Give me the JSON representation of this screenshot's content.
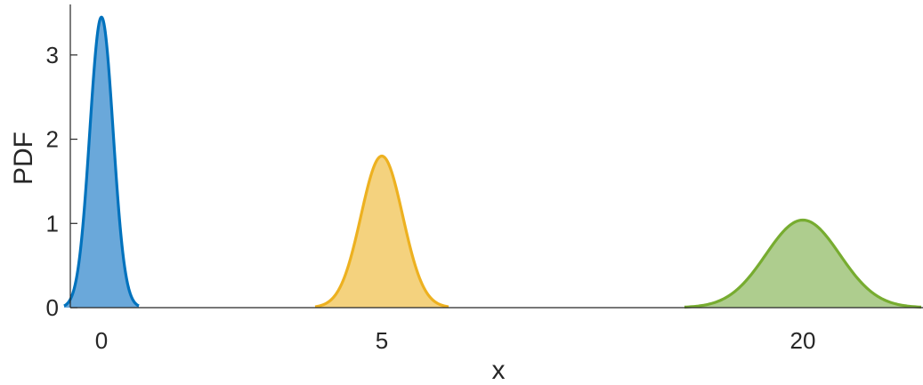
{
  "chart_data": {
    "type": "area",
    "xlabel": "x",
    "ylabel": "PDF",
    "ylim": [
      0,
      3.6
    ],
    "y_ticks": [
      0,
      1,
      2,
      3
    ],
    "grid": false,
    "legend": "none",
    "x_tick_labels": [
      "0",
      "5",
      "20"
    ],
    "series": [
      {
        "color": "#0072BD",
        "fill_color": "#6AA8DA",
        "category": "0",
        "peak": 3.45,
        "x": [
          -0.4,
          -0.3,
          -0.2,
          -0.15,
          -0.1,
          -0.05,
          0.0,
          0.05,
          0.1,
          0.15,
          0.2,
          0.3,
          0.4
        ],
        "y": [
          0.0,
          0.04,
          0.69,
          1.66,
          2.78,
          3.34,
          3.45,
          3.34,
          2.78,
          1.66,
          0.69,
          0.04,
          0.0
        ]
      },
      {
        "color": "#EDB120",
        "fill_color": "#F4D27E",
        "category": "5",
        "peak": 1.8,
        "x": [
          4.3,
          4.5,
          4.6,
          4.7,
          4.8,
          4.9,
          5.0,
          5.1,
          5.2,
          5.3,
          5.4,
          5.5,
          5.7
        ],
        "y": [
          0.0,
          0.06,
          0.24,
          0.6,
          1.14,
          1.62,
          1.8,
          1.62,
          1.14,
          0.6,
          0.24,
          0.06,
          0.0
        ]
      },
      {
        "color": "#77AC30",
        "fill_color": "#AECD8E",
        "category": "20",
        "peak": 1.04,
        "x": [
          18.7,
          19.0,
          19.2,
          19.4,
          19.6,
          19.8,
          20.0,
          20.2,
          20.4,
          20.6,
          20.8,
          21.0,
          21.3
        ],
        "y": [
          0.0,
          0.01,
          0.06,
          0.17,
          0.45,
          0.82,
          1.04,
          0.82,
          0.45,
          0.17,
          0.06,
          0.01,
          0.0
        ]
      }
    ]
  }
}
